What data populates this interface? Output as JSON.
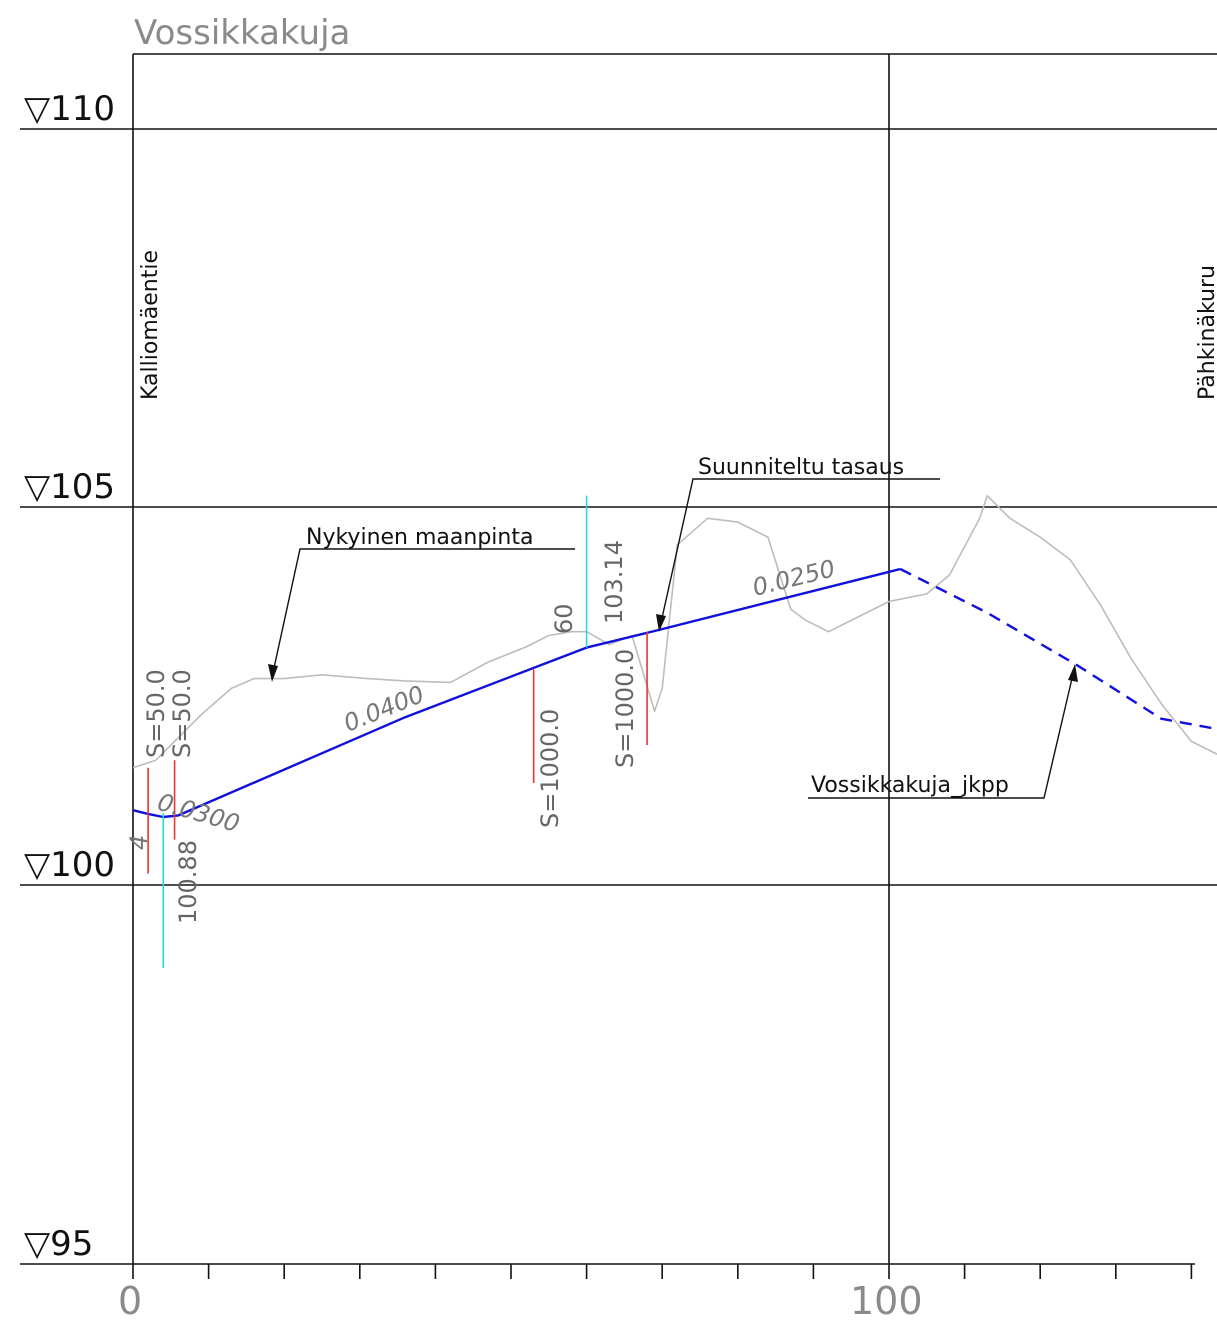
{
  "title": "Vossikkakuja",
  "elevation_labels": [
    "▽110",
    "▽105",
    "▽100",
    "▽95"
  ],
  "station_labels": [
    "0",
    "100"
  ],
  "street_labels": {
    "left": "Kalliomäentie",
    "right": "Pähkinäkuru"
  },
  "callouts": {
    "existing_ground": "Nykyinen maanpinta",
    "design_profile": "Suunniteltu tasaus",
    "jkpp": "Vossikkakuja_jkpp"
  },
  "grades": [
    "0.0400",
    "0.0250",
    "0.0300",
    "4"
  ],
  "curve_labels": [
    "S=50.0",
    "S=50.0",
    "S=1000.0",
    "S=1000.0"
  ],
  "point_labels": [
    "100.88",
    "60",
    "103.14"
  ],
  "colors": {
    "design": "#1010dd",
    "ground": "#bdbdbd",
    "curve_marker": "#ee3333",
    "station_marker": "#22dddd",
    "grid": "#111111"
  },
  "chart_data": {
    "type": "line",
    "title": "Vossikkakuja",
    "xlabel": "",
    "ylabel": "",
    "xlim": [
      0,
      145
    ],
    "ylim": [
      95,
      110
    ],
    "x_ticks": [
      0,
      100
    ],
    "y_ticks": [
      95,
      100,
      105,
      110
    ],
    "series": [
      {
        "name": "Suunniteltu tasaus",
        "style": "solid",
        "x": [
          0,
          2,
          4,
          6,
          36,
          54,
          60,
          69,
          101.5
        ],
        "y": [
          100.99,
          100.94,
          100.9,
          100.92,
          102.22,
          102.91,
          103.14,
          103.36,
          104.18
        ]
      },
      {
        "name": "Vossikkakuja_jkpp",
        "style": "dashed",
        "x": [
          101.5,
          113,
          125,
          136,
          143
        ],
        "y": [
          104.18,
          103.6,
          102.9,
          102.2,
          102.07
        ]
      },
      {
        "name": "Nykyinen maanpinta",
        "style": "solid",
        "x": [
          0,
          3,
          6,
          9,
          13,
          16,
          20,
          25,
          31,
          36,
          42,
          47,
          52,
          55,
          58,
          60,
          63,
          66,
          69,
          70,
          72,
          76,
          80,
          84,
          87,
          89,
          92,
          95,
          100,
          105,
          108,
          112,
          113,
          116,
          120,
          124,
          128,
          132,
          136,
          140,
          144
        ],
        "y": [
          101.55,
          101.65,
          101.95,
          102.25,
          102.6,
          102.73,
          102.73,
          102.78,
          102.73,
          102.7,
          102.68,
          102.95,
          103.15,
          103.3,
          103.35,
          103.35,
          103.18,
          103.3,
          102.3,
          102.6,
          104.5,
          104.85,
          104.8,
          104.6,
          103.65,
          103.5,
          103.35,
          103.5,
          103.75,
          103.85,
          104.1,
          104.85,
          105.15,
          104.85,
          104.6,
          104.3,
          103.7,
          103.0,
          102.4,
          101.9,
          101.7
        ]
      }
    ],
    "curve_markers": [
      {
        "label": "S=50.0",
        "x": 2
      },
      {
        "label": "S=50.0",
        "x": 5.5
      },
      {
        "label": "S=1000.0",
        "x": 53
      },
      {
        "label": "S=1000.0",
        "x": 68
      }
    ],
    "station_markers": [
      {
        "label": "100.88",
        "x": 4,
        "y": 100.88
      },
      {
        "label": "103.14",
        "x": 60,
        "y": 103.14
      }
    ],
    "grade_labels": [
      {
        "text": "0.0400",
        "segment": "0–60"
      },
      {
        "text": "0.0250",
        "segment": "60–101.5"
      },
      {
        "text": "0.0300",
        "segment": "4–6"
      }
    ]
  }
}
